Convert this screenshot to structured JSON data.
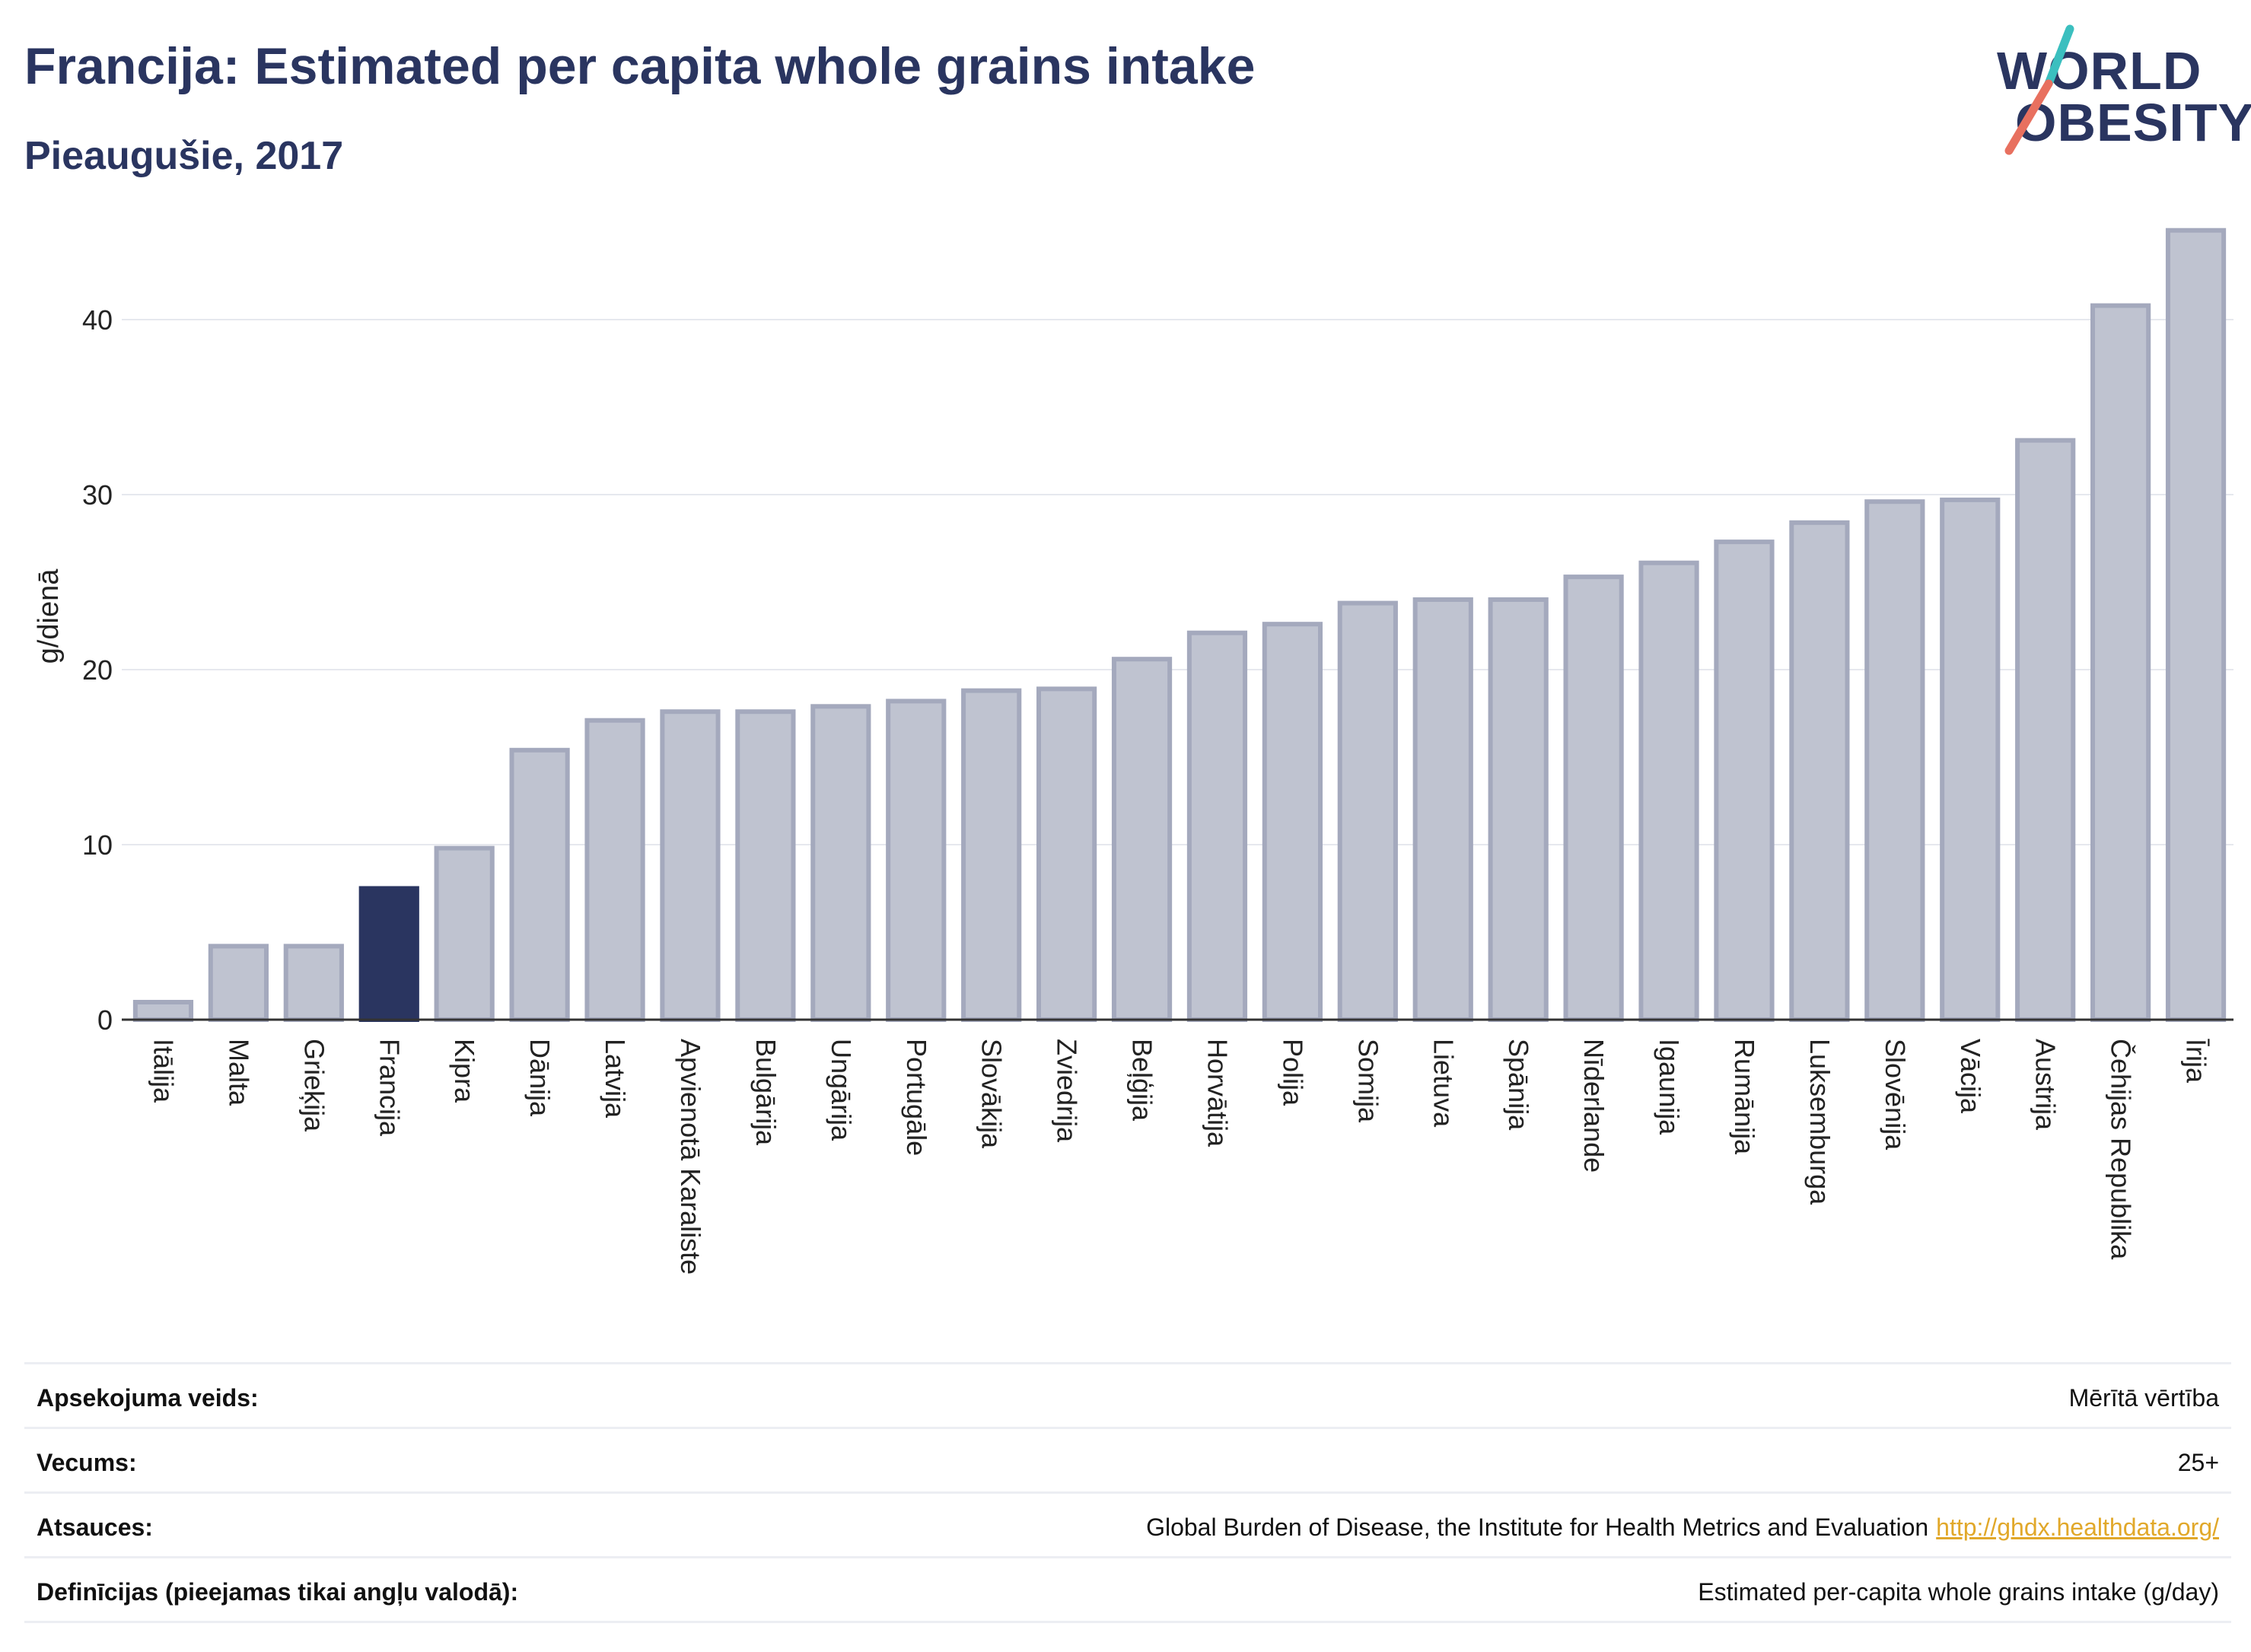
{
  "header": {
    "title": "Francija: Estimated per capita whole grains intake",
    "subtitle": "Pieaugušie, 2017"
  },
  "logo": {
    "line1": "WORLD",
    "line2": "OBESITY"
  },
  "colors": {
    "bar_default": "#bfc3d0",
    "bar_default_border": "#a4a9bd",
    "bar_highlight": "#2a3560",
    "grid": "#e6e8ee",
    "axis": "#333333",
    "logo_teal": "#3bbfbf",
    "logo_coral": "#e8705f"
  },
  "chart_data": {
    "type": "bar",
    "ylabel": "g/dienā",
    "ylim": [
      0,
      46
    ],
    "yticks": [
      0,
      10,
      20,
      30,
      40
    ],
    "grid": true,
    "highlight": "Francija",
    "categories": [
      "Itālija",
      "Malta",
      "Grieķija",
      "Francija",
      "Kipra",
      "Dānija",
      "Latvija",
      "Apvienotā Karaliste",
      "Bulgārija",
      "Ungārija",
      "Portugāle",
      "Slovākija",
      "Zviedrija",
      "Beļģija",
      "Horvātija",
      "Polija",
      "Somija",
      "Lietuva",
      "Spānija",
      "Nīderlande",
      "Igaunija",
      "Rumānija",
      "Luksemburga",
      "Slovēnija",
      "Vācija",
      "Austrija",
      "Čehijas Republika",
      "Īrija"
    ],
    "values": [
      1.0,
      4.2,
      4.2,
      7.5,
      9.8,
      15.4,
      17.1,
      17.6,
      17.6,
      17.9,
      18.2,
      18.8,
      18.9,
      20.6,
      22.1,
      22.6,
      23.8,
      24.0,
      24.0,
      25.3,
      26.1,
      27.3,
      28.4,
      29.6,
      29.7,
      33.1,
      40.8,
      45.1
    ]
  },
  "info_table": [
    {
      "label": "Apsekojuma veids:",
      "value": "Mērītā vērtība"
    },
    {
      "label": "Vecums:",
      "value": "25+"
    },
    {
      "label": "Atsauces:",
      "value": "Global Burden of Disease, the Institute for Health Metrics and Evaluation",
      "link": "http://ghdx.healthdata.org/"
    },
    {
      "label": "Definīcijas (pieejamas tikai angļu valodā):",
      "value": "Estimated per-capita whole grains intake (g/day)"
    }
  ]
}
